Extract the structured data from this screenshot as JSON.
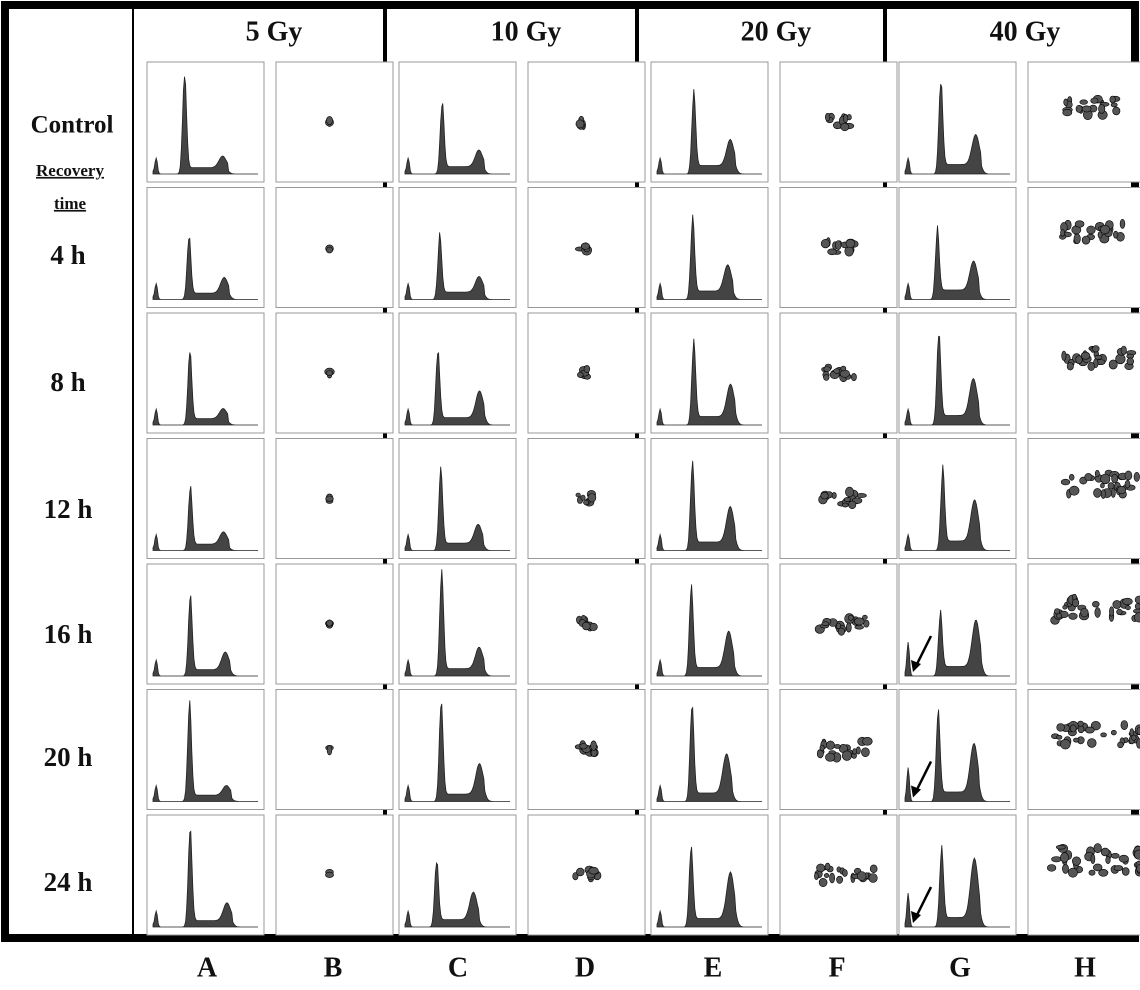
{
  "columns": [
    {
      "dose": "5 Gy"
    },
    {
      "dose": "10 Gy"
    },
    {
      "dose": "20 Gy"
    },
    {
      "dose": "40 Gy"
    }
  ],
  "rows": [
    {
      "label": "Control"
    },
    {
      "label": "4 h"
    },
    {
      "label": "8 h"
    },
    {
      "label": "12 h"
    },
    {
      "label": "16 h"
    },
    {
      "label": "20 h"
    },
    {
      "label": "24 h"
    }
  ],
  "recovery_label": {
    "line1": "Recovery",
    "line2": "time"
  },
  "panel_letters": [
    "A",
    "B",
    "C",
    "D",
    "E",
    "F",
    "G",
    "H"
  ]
}
